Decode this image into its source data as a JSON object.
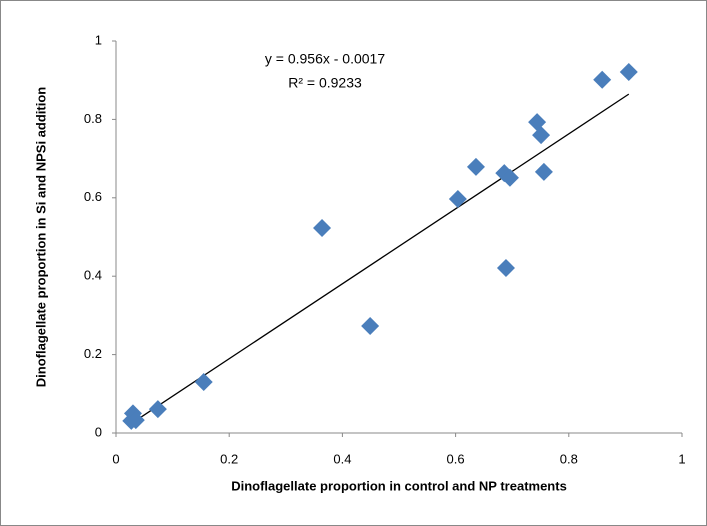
{
  "chart_data": {
    "type": "scatter",
    "x_label": "Dinoflagellate proportion in control and NP treatments",
    "y_label": "Dinoflagellate proportion in Si and NPSi addition",
    "annotations": [
      "y = 0.956x - 0.0017",
      "R² = 0.9233"
    ],
    "series": [
      {
        "color": "#4a7ebb",
        "x": [
          0.027,
          0.03,
          0.035,
          0.074,
          0.155,
          0.364,
          0.449,
          0.604,
          0.636,
          0.686,
          0.696,
          0.689,
          0.744,
          0.751,
          0.756,
          0.859,
          0.906
        ],
        "values": [
          0.031,
          0.05,
          0.033,
          0.061,
          0.13,
          0.523,
          0.273,
          0.597,
          0.679,
          0.663,
          0.651,
          0.421,
          0.793,
          0.76,
          0.666,
          0.901,
          0.921
        ]
      }
    ],
    "trendline": {
      "slope": 0.956,
      "intercept": -0.0017,
      "color": "#000000"
    },
    "xlim": [
      0,
      1
    ],
    "xticks": [
      0,
      0.2,
      0.4,
      0.6,
      0.8,
      1
    ],
    "ylim": [
      0,
      1
    ],
    "yticks": [
      0,
      0.2,
      0.4,
      0.6,
      0.8,
      1
    ],
    "grid": false
  }
}
